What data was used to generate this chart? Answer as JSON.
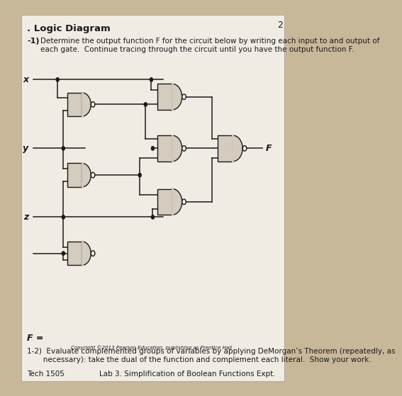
{
  "bg_color": "#c8b89a",
  "paper_color": "#f0ece4",
  "page_number": "2",
  "section_title": ". Logic Diagram",
  "problem_1_label": "-1)",
  "problem_1_text": "Determine the output function F for the circuit below by writing each input to and output of\neach gate.  Continue tracing through the circuit until you have the output function F.",
  "f_equals": "F =",
  "problem_12_text": "1-2)  Evaluate complemented groups of variables by applying DeMorgan’s Theorem (repeatedly, as\n       necessary): take the dual of the function and complement each literal.  Show your work.",
  "footer_left": "Tech 1505",
  "footer_right": "Lab 3. Simplification of Boolean Functions Expt.",
  "copyright_text": "Copyright ©2013 Pearson Education, publishing as Prentice Hall",
  "gate_fill": "#d4ccbe",
  "gate_edge": "#1a1a1a",
  "wire_color": "#1a1a1a",
  "text_color": "#1a1a1a"
}
